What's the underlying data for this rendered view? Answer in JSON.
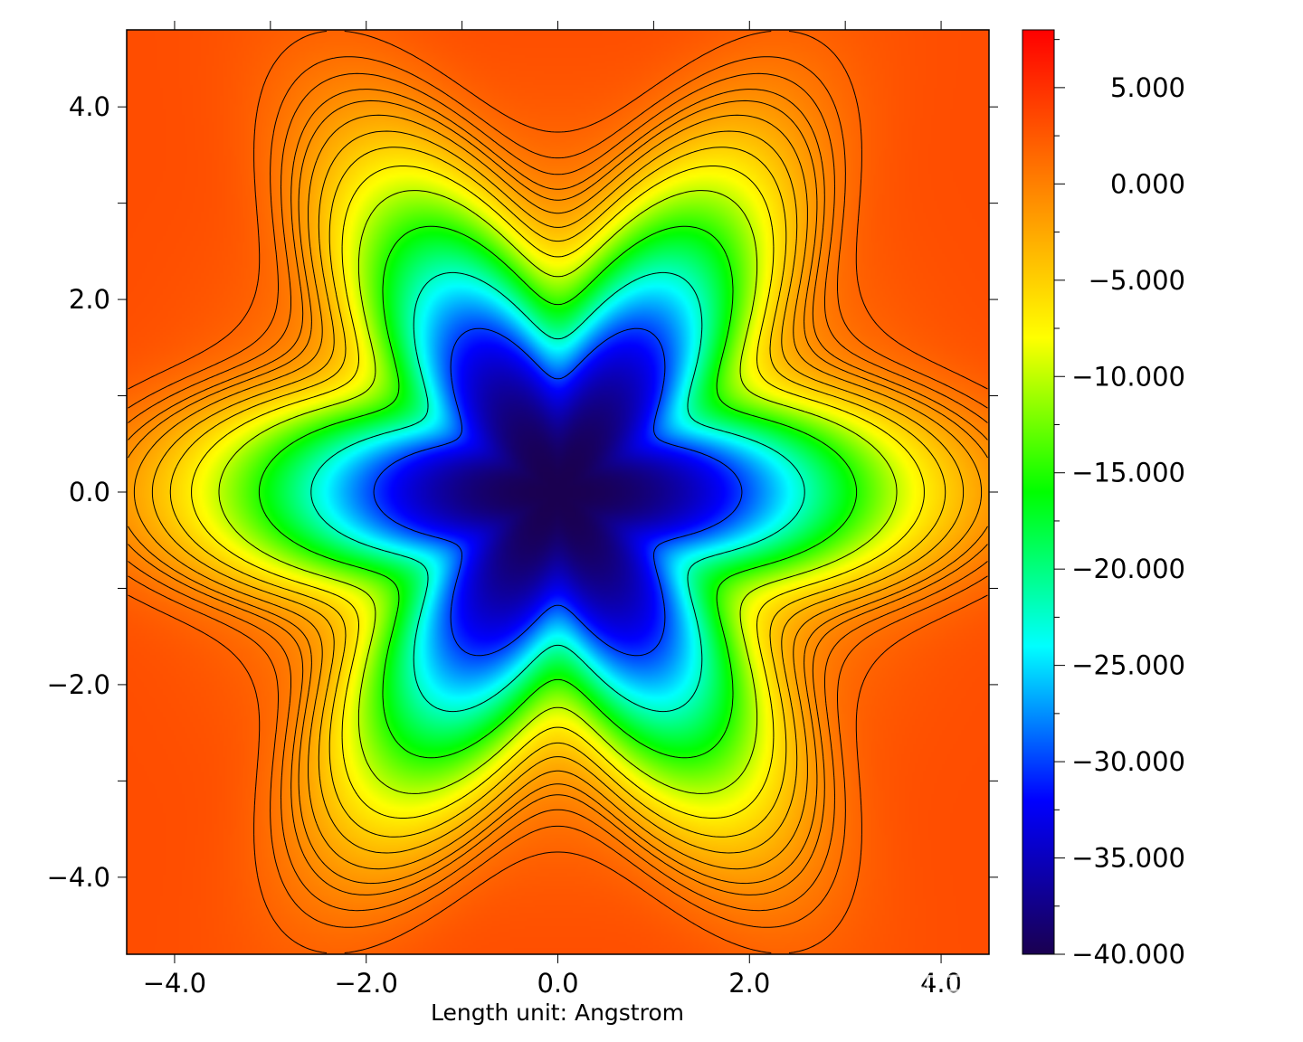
{
  "chart_data": {
    "type": "heatmap",
    "description_units": "Angstrom",
    "xlabel": "Length unit: Angstrom",
    "ylabel": "",
    "xlim": [
      -4.5,
      4.5
    ],
    "ylim": [
      -4.8,
      4.8
    ],
    "x_ticks": [
      -4.0,
      -2.0,
      0.0,
      2.0,
      4.0
    ],
    "x_tick_labels": [
      "−4.0",
      "−2.0",
      "0.0",
      "2.0",
      "4.0"
    ],
    "y_ticks": [
      4.0,
      2.0,
      0.0,
      -2.0,
      -4.0
    ],
    "y_tick_labels": [
      "4.0",
      "2.0",
      "0.0",
      "−2.0",
      "−4.0"
    ],
    "colorbar": {
      "range": [
        -40.0,
        8.0
      ],
      "colormap": "rainbow",
      "colors": [
        "#1a0050",
        "#0000ff",
        "#00ffff",
        "#00ff00",
        "#ffff00",
        "#ff8000",
        "#ff0000"
      ],
      "ticks": [
        5.0,
        0.0,
        -5.0,
        -10.0,
        -15.0,
        -20.0,
        -25.0,
        -30.0,
        -35.0,
        -40.0
      ],
      "tick_labels": [
        "5.000",
        "0.000",
        "−5.000",
        "−10.000",
        "−15.000",
        "−20.000",
        "−25.000",
        "−30.000",
        "−35.000",
        "−40.000"
      ]
    },
    "features": {
      "minimum_value": -40.0,
      "minimum_location": [
        0.0,
        0.0
      ],
      "symmetry": "six-fold",
      "contours": "solid lines for positive levels, dashed lines for negative levels"
    }
  },
  "watermark": "知乎 @氯金酸HAuCl4"
}
